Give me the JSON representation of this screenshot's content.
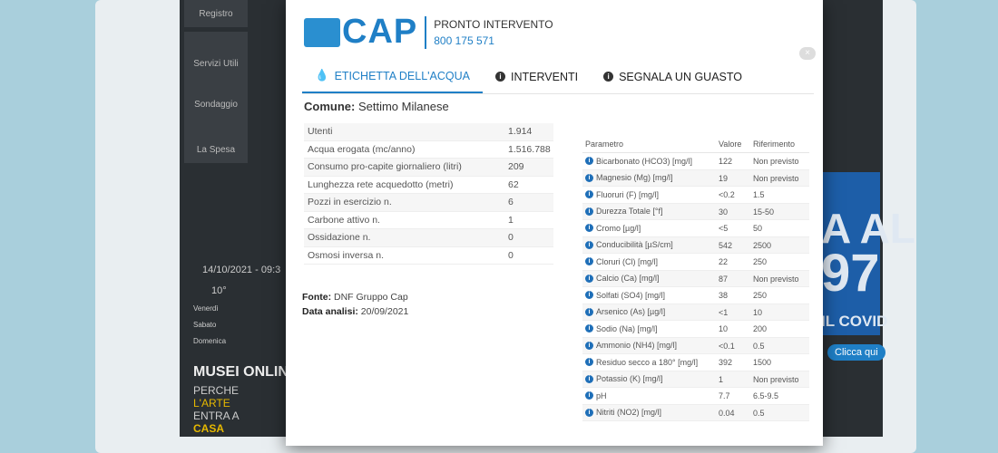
{
  "background": {
    "sidebar": [
      "Registro",
      "Servizi Utili",
      "Sondaggio",
      "La Spesa"
    ],
    "date": "14/10/2021 - 09:3",
    "temp": "10°",
    "days": [
      "Venerdì",
      "Sabato",
      "Domenica"
    ],
    "museum": "MUSEI ONLINE",
    "museum_sub": [
      "PERCHE",
      "L'ARTE",
      "ENTRA A",
      "CASA"
    ],
    "promo_big1": "A AL",
    "promo_big2": "97",
    "promo_covid": "IL COVID",
    "promo_button": "Clicca qui"
  },
  "header": {
    "logo_text": "CAP",
    "logo_small": "GRUPPO",
    "pronto": "PRONTO INTERVENTO",
    "phone": "800 175 571",
    "close": "×"
  },
  "tabs": [
    {
      "label": "ETICHETTA DELL'ACQUA",
      "icon": "water-drop-icon",
      "active": true
    },
    {
      "label": "INTERVENTI",
      "icon": "info-icon"
    },
    {
      "label": "SEGNALA UN GUASTO",
      "icon": "info-icon"
    }
  ],
  "comune": {
    "label": "Comune:",
    "value": "Settimo Milanese"
  },
  "stats": [
    [
      "Utenti",
      "1.914"
    ],
    [
      "Acqua erogata (mc/anno)",
      "1.516.788"
    ],
    [
      "Consumo pro-capite giornaliero (litri)",
      "209"
    ],
    [
      "Lunghezza rete acquedotto (metri)",
      "62"
    ],
    [
      "Pozzi in esercizio n.",
      "6"
    ],
    [
      "Carbone attivo n.",
      "1"
    ],
    [
      "Ossidazione n.",
      "0"
    ],
    [
      "Osmosi inversa n.",
      "0"
    ]
  ],
  "source": {
    "fonte_label": "Fonte:",
    "fonte": "DNF Gruppo Cap",
    "data_label": "Data analisi:",
    "data": "20/09/2021"
  },
  "params": {
    "headers": [
      "Parametro",
      "Valore",
      "Riferimento"
    ],
    "rows": [
      [
        "Bicarbonato (HCO3) [mg/l]",
        "122",
        "Non previsto"
      ],
      [
        "Magnesio (Mg) [mg/l]",
        "19",
        "Non previsto"
      ],
      [
        "Fluoruri (F) [mg/l]",
        "<0.2",
        "1.5"
      ],
      [
        "Durezza Totale [°f]",
        "30",
        "15-50"
      ],
      [
        "Cromo [µg/l]",
        "<5",
        "50"
      ],
      [
        "Conducibilità [µS/cm]",
        "542",
        "2500"
      ],
      [
        "Cloruri (Cl) [mg/l]",
        "22",
        "250"
      ],
      [
        "Calcio (Ca) [mg/l]",
        "87",
        "Non previsto"
      ],
      [
        "Solfati (SO4) [mg/l]",
        "38",
        "250"
      ],
      [
        "Arsenico (As) [µg/l]",
        "<1",
        "10"
      ],
      [
        "Sodio (Na) [mg/l]",
        "10",
        "200"
      ],
      [
        "Ammonio (NH4) [mg/l]",
        "<0.1",
        "0.5"
      ],
      [
        "Residuo secco a 180° [mg/l]",
        "392",
        "1500"
      ],
      [
        "Potassio (K) [mg/l]",
        "1",
        "Non previsto"
      ],
      [
        "pH",
        "7.7",
        "6.5-9.5"
      ],
      [
        "Nitriti (NO2) [mg/l]",
        "0.04",
        "0.5"
      ]
    ]
  }
}
